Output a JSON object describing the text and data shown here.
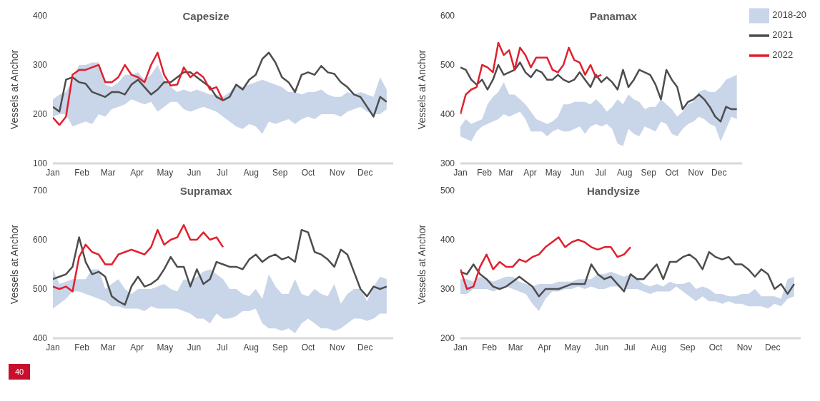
{
  "chart_data": [
    {
      "type": "line",
      "title": "Capesize",
      "ylabel": "Vessels at Anchor",
      "ylim": [
        100,
        400
      ],
      "yticks": [
        100,
        200,
        300,
        400
      ],
      "xlim": [
        "--01-01",
        "--12-31"
      ],
      "xticks": [
        {
          "value": "--01-01",
          "label": "Jan"
        },
        {
          "value": "--02-01",
          "label": "Feb"
        },
        {
          "value": "--03-01",
          "label": "Mar"
        },
        {
          "value": "--04-01",
          "label": "Apr"
        },
        {
          "value": "--05-01",
          "label": "May"
        },
        {
          "value": "--06-01",
          "label": "Jun"
        },
        {
          "value": "--07-01",
          "label": "Jul"
        },
        {
          "value": "--08-01",
          "label": "Aug"
        },
        {
          "value": "--09-01",
          "label": "Sep"
        },
        {
          "value": "--10-01",
          "label": "Oct"
        },
        {
          "value": "--11-01",
          "label": "Nov"
        },
        {
          "value": "--12-01",
          "label": "Dec"
        }
      ],
      "x": [
        "--01-01",
        "--01-08",
        "--01-15",
        "--01-22",
        "--01-29",
        "--02-05",
        "--02-12",
        "--02-19",
        "--02-26",
        "--03-05",
        "--03-12",
        "--03-19",
        "--03-26",
        "--04-02",
        "--04-09",
        "--04-16",
        "--04-23",
        "--04-30",
        "--05-07",
        "--05-14",
        "--05-21",
        "--05-28",
        "--06-04",
        "--06-11",
        "--06-18",
        "--06-25",
        "--07-02",
        "--07-09",
        "--07-16",
        "--07-23",
        "--07-30",
        "--08-06",
        "--08-13",
        "--08-20",
        "--08-27",
        "--09-03",
        "--09-10",
        "--09-17",
        "--09-24",
        "--10-01",
        "--10-08",
        "--10-15",
        "--10-22",
        "--10-29",
        "--11-05",
        "--11-12",
        "--11-19",
        "--11-26",
        "--12-03",
        "--12-10",
        "--12-17",
        "--12-24"
      ],
      "series": [
        {
          "type": "area",
          "color": "#c9d5e8",
          "values": [
            null,
            null,
            null,
            null,
            null,
            null,
            null,
            null,
            null,
            null,
            null,
            null,
            null,
            null,
            null,
            null,
            null,
            null,
            null,
            null,
            null,
            null,
            null,
            null,
            null,
            null,
            null,
            null,
            null,
            null,
            null,
            null,
            null,
            null,
            null,
            null,
            null,
            null,
            null,
            null,
            null,
            null,
            null,
            null,
            null,
            null,
            null,
            null,
            null,
            null,
            null,
            null
          ],
          "lower": [
            195,
            200,
            200,
            175,
            180,
            185,
            180,
            200,
            195,
            210,
            215,
            220,
            230,
            225,
            220,
            225,
            205,
            215,
            225,
            225,
            210,
            205,
            210,
            215,
            210,
            205,
            195,
            185,
            175,
            170,
            180,
            175,
            160,
            185,
            180,
            185,
            190,
            180,
            190,
            195,
            190,
            200,
            200,
            200,
            195,
            205,
            210,
            215,
            205,
            200,
            200,
            210
          ],
          "upper": [
            230,
            240,
            245,
            270,
            300,
            300,
            305,
            305,
            260,
            255,
            265,
            280,
            280,
            285,
            270,
            280,
            300,
            270,
            255,
            245,
            250,
            245,
            250,
            245,
            240,
            240,
            235,
            245,
            260,
            255,
            260,
            265,
            270,
            265,
            260,
            255,
            245,
            245,
            240,
            245,
            245,
            250,
            240,
            235,
            235,
            245,
            240,
            245,
            240,
            235,
            275,
            250
          ]
        },
        {
          "color": "#4d4d4d",
          "values": [
            215,
            205,
            270,
            275,
            265,
            262,
            245,
            240,
            235,
            245,
            245,
            240,
            260,
            270,
            255,
            240,
            250,
            265,
            265,
            275,
            285,
            285,
            275,
            265,
            255,
            235,
            228,
            235,
            260,
            250,
            270,
            280,
            312,
            325,
            305,
            275,
            265,
            245,
            280,
            285,
            280,
            298,
            285,
            282,
            265,
            255,
            240,
            235,
            215,
            195,
            235,
            225
          ]
        },
        {
          "color": "#e0202e",
          "values": [
            193,
            178,
            195,
            280,
            290,
            290,
            295,
            300,
            265,
            265,
            275,
            300,
            280,
            275,
            265,
            300,
            325,
            280,
            258,
            260,
            295,
            275,
            285,
            275,
            250,
            255,
            228,
            null,
            null,
            null,
            null,
            null,
            null,
            null,
            null,
            null,
            null,
            null,
            null,
            null,
            null,
            null,
            null,
            null,
            null,
            null,
            null,
            null,
            null,
            null,
            null,
            null
          ]
        }
      ]
    },
    {
      "type": "line",
      "title": "Panamax",
      "ylabel": "Vessels at Anchor",
      "ylim": [
        300,
        600
      ],
      "yticks": [
        300,
        400,
        500,
        600
      ],
      "xlim": [
        "--01-01",
        "--12-31"
      ],
      "legend": "top right",
      "xticks": [
        {
          "value": "--01-01",
          "label": "Jan"
        },
        {
          "value": "--02-01",
          "label": "Feb"
        },
        {
          "value": "--03-01",
          "label": "Mar"
        },
        {
          "value": "--04-01",
          "label": "Apr"
        },
        {
          "value": "--05-01",
          "label": "May"
        },
        {
          "value": "--06-01",
          "label": "Jun"
        },
        {
          "value": "--07-01",
          "label": "Jul"
        },
        {
          "value": "--08-01",
          "label": "Aug"
        },
        {
          "value": "--09-01",
          "label": "Sep"
        },
        {
          "value": "--10-01",
          "label": "Oct"
        },
        {
          "value": "--11-01",
          "label": "Nov"
        },
        {
          "value": "--12-01",
          "label": "Dec"
        }
      ],
      "x": [
        "--01-01",
        "--01-08",
        "--01-15",
        "--01-22",
        "--01-29",
        "--02-05",
        "--02-12",
        "--02-19",
        "--02-26",
        "--03-05",
        "--03-12",
        "--03-19",
        "--03-26",
        "--04-02",
        "--04-09",
        "--04-16",
        "--04-23",
        "--04-30",
        "--05-07",
        "--05-14",
        "--05-21",
        "--05-28",
        "--06-04",
        "--06-11",
        "--06-18",
        "--06-25",
        "--07-02",
        "--07-09",
        "--07-16",
        "--07-23",
        "--07-30",
        "--08-06",
        "--08-13",
        "--08-20",
        "--08-27",
        "--09-03",
        "--09-10",
        "--09-17",
        "--09-24",
        "--10-01",
        "--10-08",
        "--10-15",
        "--10-22",
        "--10-29",
        "--11-05",
        "--11-12",
        "--11-19",
        "--11-26",
        "--12-03",
        "--12-10",
        "--12-17",
        "--12-24"
      ],
      "series": [
        {
          "type": "area",
          "name": "2018-20",
          "color": "#c9d5e8",
          "values": [
            null,
            null,
            null,
            null,
            null,
            null,
            null,
            null,
            null,
            null,
            null,
            null,
            null,
            null,
            null,
            null,
            null,
            null,
            null,
            null,
            null,
            null,
            null,
            null,
            null,
            null,
            null,
            null,
            null,
            null,
            null,
            null,
            null,
            null,
            null,
            null,
            null,
            null,
            null,
            null,
            null,
            null,
            null,
            null,
            null,
            null,
            null,
            null,
            null,
            null,
            null,
            null
          ],
          "lower": [
            355,
            350,
            345,
            365,
            375,
            380,
            385,
            390,
            400,
            395,
            400,
            405,
            390,
            365,
            365,
            365,
            355,
            365,
            370,
            365,
            365,
            370,
            375,
            360,
            375,
            380,
            375,
            380,
            370,
            340,
            335,
            370,
            360,
            355,
            375,
            370,
            365,
            385,
            380,
            360,
            355,
            370,
            380,
            385,
            395,
            390,
            380,
            375,
            345,
            370,
            395,
            390
          ],
          "upper": [
            375,
            390,
            380,
            385,
            390,
            420,
            435,
            445,
            465,
            440,
            440,
            430,
            420,
            405,
            390,
            385,
            380,
            385,
            395,
            420,
            420,
            425,
            425,
            425,
            420,
            430,
            420,
            405,
            415,
            430,
            420,
            440,
            430,
            425,
            410,
            415,
            415,
            430,
            420,
            410,
            395,
            405,
            420,
            425,
            445,
            450,
            445,
            445,
            455,
            470,
            475,
            480
          ]
        },
        {
          "name": "2021",
          "color": "#4d4d4d",
          "values": [
            495,
            490,
            470,
            460,
            470,
            450,
            470,
            500,
            480,
            485,
            490,
            505,
            485,
            475,
            490,
            485,
            470,
            470,
            480,
            470,
            465,
            470,
            485,
            470,
            455,
            480,
            465,
            475,
            465,
            450,
            490,
            455,
            470,
            490,
            485,
            480,
            460,
            430,
            490,
            470,
            455,
            410,
            425,
            430,
            440,
            430,
            415,
            395,
            385,
            415,
            410,
            410
          ]
        },
        {
          "name": "2022",
          "color": "#e0202e",
          "values": [
            400,
            440,
            450,
            455,
            500,
            495,
            485,
            545,
            520,
            530,
            490,
            535,
            520,
            495,
            515,
            515,
            515,
            490,
            485,
            500,
            535,
            510,
            505,
            480,
            500,
            475,
            480,
            null,
            null,
            null,
            null,
            null,
            null,
            null,
            null,
            null,
            null,
            null,
            null,
            null,
            null,
            null,
            null,
            null,
            null,
            null,
            null,
            null,
            null,
            null,
            null,
            null
          ]
        }
      ]
    },
    {
      "type": "line",
      "title": "Supramax",
      "ylabel": "Vessels at Anchor",
      "ylim": [
        400,
        700
      ],
      "yticks": [
        400,
        500,
        600,
        700
      ],
      "xlim": [
        "--01-01",
        "--12-31"
      ],
      "annotations": [
        "40"
      ],
      "xticks": [
        {
          "value": "--01-01",
          "label": "Jan"
        },
        {
          "value": "--02-01",
          "label": "Feb"
        },
        {
          "value": "--03-01",
          "label": "Mar"
        },
        {
          "value": "--04-01",
          "label": "Apr"
        },
        {
          "value": "--05-01",
          "label": "May"
        },
        {
          "value": "--06-01",
          "label": "Jun"
        },
        {
          "value": "--07-01",
          "label": "Jul"
        },
        {
          "value": "--08-01",
          "label": "Aug"
        },
        {
          "value": "--09-01",
          "label": "Sep"
        },
        {
          "value": "--10-01",
          "label": "Oct"
        },
        {
          "value": "--11-01",
          "label": "Nov"
        },
        {
          "value": "--12-01",
          "label": "Dec"
        }
      ],
      "x": [
        "--01-01",
        "--01-08",
        "--01-15",
        "--01-22",
        "--01-29",
        "--02-05",
        "--02-12",
        "--02-19",
        "--02-26",
        "--03-05",
        "--03-12",
        "--03-19",
        "--03-26",
        "--04-02",
        "--04-09",
        "--04-16",
        "--04-23",
        "--04-30",
        "--05-07",
        "--05-14",
        "--05-21",
        "--05-28",
        "--06-04",
        "--06-11",
        "--06-18",
        "--06-25",
        "--07-02",
        "--07-09",
        "--07-16",
        "--07-23",
        "--07-30",
        "--08-06",
        "--08-13",
        "--08-20",
        "--08-27",
        "--09-03",
        "--09-10",
        "--09-17",
        "--09-24",
        "--10-01",
        "--10-08",
        "--10-15",
        "--10-22",
        "--10-29",
        "--11-05",
        "--11-12",
        "--11-19",
        "--11-26",
        "--12-03",
        "--12-10",
        "--12-17",
        "--12-24"
      ],
      "series": [
        {
          "type": "area",
          "color": "#c9d5e8",
          "values": [
            null,
            null,
            null,
            null,
            null,
            null,
            null,
            null,
            null,
            null,
            null,
            null,
            null,
            null,
            null,
            null,
            null,
            null,
            null,
            null,
            null,
            null,
            null,
            null,
            null,
            null,
            null,
            null,
            null,
            null,
            null,
            null,
            null,
            null,
            null,
            null,
            null,
            null,
            null,
            null,
            null,
            null,
            null,
            null,
            null,
            null,
            null,
            null,
            null,
            null,
            null,
            null
          ],
          "lower": [
            460,
            470,
            480,
            495,
            495,
            490,
            485,
            480,
            475,
            465,
            465,
            460,
            460,
            460,
            455,
            465,
            460,
            460,
            460,
            460,
            455,
            450,
            440,
            440,
            430,
            450,
            440,
            440,
            445,
            455,
            455,
            460,
            430,
            420,
            420,
            415,
            420,
            410,
            430,
            440,
            430,
            420,
            420,
            415,
            420,
            430,
            440,
            440,
            435,
            440,
            450,
            450
          ],
          "upper": [
            540,
            510,
            515,
            520,
            520,
            520,
            540,
            540,
            500,
            510,
            520,
            500,
            490,
            500,
            500,
            500,
            505,
            510,
            500,
            495,
            520,
            515,
            525,
            535,
            540,
            530,
            520,
            500,
            500,
            490,
            485,
            500,
            480,
            530,
            505,
            490,
            490,
            520,
            490,
            485,
            500,
            490,
            485,
            510,
            470,
            490,
            500,
            500,
            475,
            505,
            525,
            520
          ]
        },
        {
          "color": "#4d4d4d",
          "values": [
            520,
            525,
            530,
            545,
            605,
            555,
            530,
            535,
            525,
            485,
            475,
            468,
            505,
            525,
            505,
            510,
            520,
            540,
            565,
            545,
            545,
            505,
            540,
            510,
            520,
            555,
            550,
            545,
            545,
            540,
            560,
            570,
            555,
            565,
            570,
            560,
            565,
            555,
            620,
            615,
            575,
            570,
            560,
            545,
            580,
            570,
            535,
            500,
            485,
            505,
            500,
            505
          ]
        },
        {
          "color": "#e0202e",
          "values": [
            505,
            500,
            505,
            495,
            565,
            590,
            575,
            570,
            550,
            550,
            570,
            575,
            580,
            575,
            570,
            585,
            620,
            590,
            600,
            605,
            630,
            600,
            600,
            615,
            600,
            605,
            585,
            null,
            null,
            null,
            null,
            null,
            null,
            null,
            null,
            null,
            null,
            null,
            null,
            null,
            null,
            null,
            null,
            null,
            null,
            null,
            null,
            null,
            null,
            null,
            null,
            null
          ]
        }
      ]
    },
    {
      "type": "line",
      "title": "Handysize",
      "ylabel": "Vessels at Anchor",
      "ylim": [
        200,
        500
      ],
      "yticks": [
        200,
        300,
        400,
        500
      ],
      "xlim": [
        "--01-01",
        "--12-31"
      ],
      "xticks": [
        {
          "value": "--01-01",
          "label": "Jan"
        },
        {
          "value": "--02-01",
          "label": "Feb"
        },
        {
          "value": "--03-01",
          "label": "Mar"
        },
        {
          "value": "--04-01",
          "label": "Apr"
        },
        {
          "value": "--05-01",
          "label": "May"
        },
        {
          "value": "--06-01",
          "label": "Jun"
        },
        {
          "value": "--07-01",
          "label": "Jul"
        },
        {
          "value": "--08-01",
          "label": "Aug"
        },
        {
          "value": "--09-01",
          "label": "Sep"
        },
        {
          "value": "--10-01",
          "label": "Oct"
        },
        {
          "value": "--11-01",
          "label": "Nov"
        },
        {
          "value": "--12-01",
          "label": "Dec"
        }
      ],
      "x": [
        "--01-01",
        "--01-08",
        "--01-15",
        "--01-22",
        "--01-29",
        "--02-05",
        "--02-12",
        "--02-19",
        "--02-26",
        "--03-05",
        "--03-12",
        "--03-19",
        "--03-26",
        "--04-02",
        "--04-09",
        "--04-16",
        "--04-23",
        "--04-30",
        "--05-07",
        "--05-14",
        "--05-21",
        "--05-28",
        "--06-04",
        "--06-11",
        "--06-18",
        "--06-25",
        "--07-02",
        "--07-09",
        "--07-16",
        "--07-23",
        "--07-30",
        "--08-06",
        "--08-13",
        "--08-20",
        "--08-27",
        "--09-03",
        "--09-10",
        "--09-17",
        "--09-24",
        "--10-01",
        "--10-08",
        "--10-15",
        "--10-22",
        "--10-29",
        "--11-05",
        "--11-12",
        "--11-19",
        "--11-26",
        "--12-03",
        "--12-10",
        "--12-17",
        "--12-24"
      ],
      "series": [
        {
          "type": "area",
          "color": "#c9d5e8",
          "values": [
            null,
            null,
            null,
            null,
            null,
            null,
            null,
            null,
            null,
            null,
            null,
            null,
            null,
            null,
            null,
            null,
            null,
            null,
            null,
            null,
            null,
            null,
            null,
            null,
            null,
            null,
            null,
            null,
            null,
            null,
            null,
            null,
            null,
            null,
            null,
            null,
            null,
            null,
            null,
            null,
            null,
            null,
            null,
            null,
            null,
            null,
            null,
            null,
            null,
            null,
            null,
            null
          ],
          "lower": [
            290,
            290,
            300,
            300,
            300,
            295,
            300,
            305,
            300,
            295,
            290,
            270,
            255,
            280,
            295,
            295,
            300,
            300,
            305,
            300,
            305,
            300,
            300,
            305,
            305,
            300,
            300,
            300,
            295,
            290,
            295,
            295,
            295,
            305,
            295,
            285,
            275,
            285,
            275,
            275,
            270,
            275,
            270,
            270,
            265,
            265,
            265,
            260,
            270,
            265,
            280,
            285
          ],
          "upper": [
            320,
            320,
            315,
            325,
            320,
            315,
            320,
            325,
            325,
            315,
            310,
            305,
            310,
            310,
            310,
            315,
            315,
            315,
            320,
            320,
            320,
            330,
            330,
            335,
            330,
            325,
            330,
            320,
            310,
            305,
            310,
            305,
            315,
            310,
            310,
            315,
            300,
            305,
            300,
            290,
            290,
            285,
            285,
            290,
            290,
            300,
            285,
            285,
            285,
            280,
            320,
            325
          ]
        },
        {
          "color": "#4d4d4d",
          "values": [
            335,
            330,
            350,
            330,
            320,
            305,
            300,
            305,
            315,
            325,
            315,
            305,
            285,
            300,
            300,
            300,
            305,
            310,
            310,
            310,
            350,
            330,
            320,
            325,
            310,
            295,
            330,
            320,
            320,
            335,
            350,
            320,
            355,
            355,
            365,
            370,
            360,
            340,
            375,
            365,
            360,
            365,
            350,
            350,
            340,
            325,
            340,
            330,
            300,
            310,
            290,
            310
          ]
        },
        {
          "color": "#e0202e",
          "values": [
            340,
            300,
            305,
            345,
            370,
            340,
            355,
            345,
            345,
            360,
            355,
            365,
            370,
            385,
            395,
            405,
            385,
            395,
            400,
            395,
            385,
            380,
            385,
            385,
            365,
            370,
            385,
            null,
            null,
            null,
            null,
            null,
            null,
            null,
            null,
            null,
            null,
            null,
            null,
            null,
            null,
            null,
            null,
            null,
            null,
            null,
            null,
            null,
            null,
            null,
            null,
            null
          ]
        }
      ]
    }
  ]
}
